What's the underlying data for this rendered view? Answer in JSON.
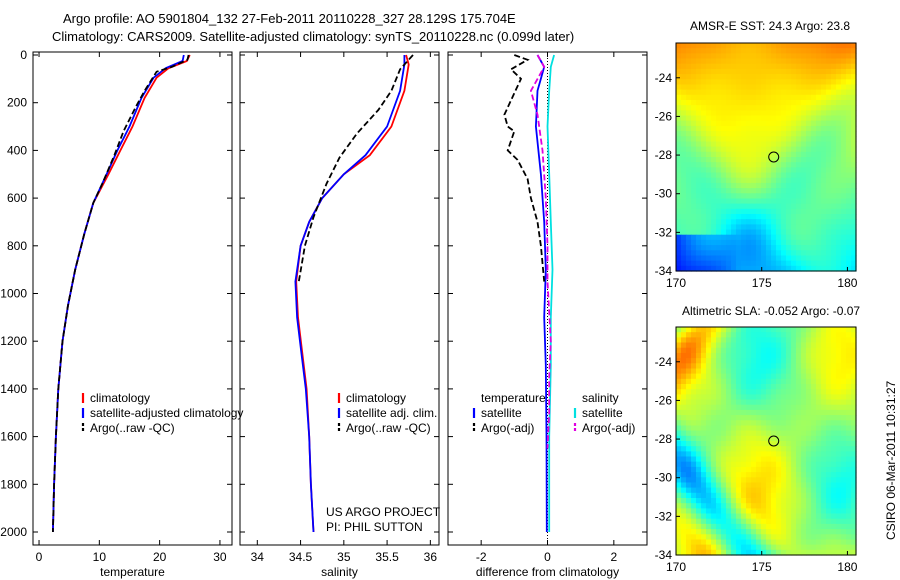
{
  "header": {
    "line1": "Argo profile: AO 5901804_132 27-Feb-2011 20110228_327 28.129S 175.704E",
    "line2": "Climatology: CARS2009. Satellite-adjusted climatology: synTS_20110228.nc (0.099d later)"
  },
  "colors": {
    "climatology": "#ff0000",
    "satellite": "#0000ff",
    "argo": "#000000",
    "sat_salinity": "#00e0e0",
    "argo_salinity": "#e000e0"
  },
  "chart_data": [
    {
      "type": "line",
      "panel": "temperature",
      "xlabel": "temperature",
      "ylabel": "",
      "xlim": [
        -1,
        32
      ],
      "ylim": [
        2050,
        0
      ],
      "xticks": [
        0,
        10,
        20,
        30
      ],
      "yticks": [
        0,
        200,
        400,
        600,
        800,
        1000,
        1200,
        1400,
        1600,
        1800,
        2000
      ],
      "legend": [
        "climatology",
        "satellite-adjusted climatology",
        "Argo(..raw -QC)"
      ],
      "series": [
        {
          "name": "climatology",
          "color": "climatology",
          "points": [
            [
              25,
              0
            ],
            [
              24.5,
              25
            ],
            [
              21.5,
              55
            ],
            [
              19.5,
              95
            ],
            [
              17.5,
              180
            ],
            [
              15.5,
              300
            ],
            [
              13.5,
              400
            ],
            [
              11.5,
              500
            ],
            [
              9,
              620
            ],
            [
              7.5,
              750
            ],
            [
              6,
              900
            ],
            [
              4.8,
              1050
            ],
            [
              3.9,
              1200
            ],
            [
              3.2,
              1400
            ],
            [
              2.8,
              1600
            ],
            [
              2.5,
              1800
            ],
            [
              2.3,
              2000
            ]
          ]
        },
        {
          "name": "satellite-adjusted climatology",
          "color": "satellite",
          "points": [
            [
              24,
              0
            ],
            [
              23.8,
              25
            ],
            [
              21,
              55
            ],
            [
              19,
              95
            ],
            [
              17,
              180
            ],
            [
              15,
              300
            ],
            [
              13,
              400
            ],
            [
              11.2,
              500
            ],
            [
              9,
              620
            ],
            [
              7.5,
              750
            ],
            [
              6,
              900
            ],
            [
              4.8,
              1050
            ],
            [
              3.9,
              1200
            ],
            [
              3.2,
              1400
            ],
            [
              2.8,
              1600
            ],
            [
              2.5,
              1800
            ],
            [
              2.3,
              2000
            ]
          ]
        },
        {
          "name": "Argo(..raw -QC)",
          "color": "argo",
          "points": [
            [
              24.8,
              0
            ],
            [
              24.6,
              20
            ],
            [
              22,
              50
            ],
            [
              19.5,
              70
            ],
            [
              17.5,
              150
            ],
            [
              16,
              220
            ],
            [
              14,
              320
            ],
            [
              12.5,
              420
            ],
            [
              10.5,
              540
            ],
            [
              9,
              620
            ],
            [
              7.5,
              750
            ],
            [
              6,
              900
            ],
            [
              4.8,
              1050
            ],
            [
              3.9,
              1200
            ],
            [
              3.2,
              1400
            ],
            [
              2.8,
              1600
            ],
            [
              2.5,
              1800
            ],
            [
              2.3,
              2000
            ]
          ]
        }
      ]
    },
    {
      "type": "line",
      "panel": "salinity",
      "xlabel": "salinity",
      "ylabel": "",
      "xlim": [
        33.8,
        36.1
      ],
      "ylim": [
        2050,
        0
      ],
      "xticks": [
        34,
        34.5,
        35,
        35.5,
        36
      ],
      "legend": [
        "climatology",
        "satellite adj. clim.",
        "Argo(..raw -QC)"
      ],
      "annotation": [
        "US ARGO PROJECT",
        "PI: PHIL SUTTON"
      ],
      "series": [
        {
          "name": "climatology",
          "color": "climatology",
          "points": [
            [
              35.72,
              0
            ],
            [
              35.75,
              40
            ],
            [
              35.7,
              150
            ],
            [
              35.55,
              300
            ],
            [
              35.3,
              420
            ],
            [
              35.0,
              500
            ],
            [
              34.75,
              600
            ],
            [
              34.6,
              700
            ],
            [
              34.5,
              800
            ],
            [
              34.45,
              950
            ],
            [
              34.47,
              1100
            ],
            [
              34.52,
              1250
            ],
            [
              34.57,
              1400
            ],
            [
              34.6,
              1600
            ],
            [
              34.62,
              1800
            ],
            [
              34.65,
              2000
            ]
          ]
        },
        {
          "name": "satellite adj. clim.",
          "color": "satellite",
          "points": [
            [
              35.7,
              0
            ],
            [
              35.7,
              40
            ],
            [
              35.65,
              150
            ],
            [
              35.5,
              300
            ],
            [
              35.25,
              420
            ],
            [
              35.0,
              500
            ],
            [
              34.75,
              600
            ],
            [
              34.6,
              700
            ],
            [
              34.5,
              800
            ],
            [
              34.44,
              950
            ],
            [
              34.46,
              1100
            ],
            [
              34.51,
              1250
            ],
            [
              34.56,
              1400
            ],
            [
              34.6,
              1600
            ],
            [
              34.62,
              1800
            ],
            [
              34.65,
              2000
            ]
          ]
        },
        {
          "name": "Argo(..raw -QC)",
          "color": "argo",
          "points": [
            [
              35.8,
              0
            ],
            [
              35.65,
              60
            ],
            [
              35.55,
              150
            ],
            [
              35.4,
              230
            ],
            [
              35.15,
              330
            ],
            [
              34.95,
              430
            ],
            [
              34.8,
              540
            ],
            [
              34.65,
              680
            ],
            [
              34.55,
              800
            ],
            [
              34.48,
              950
            ]
          ]
        }
      ]
    },
    {
      "type": "line",
      "panel": "difference",
      "xlabel": "difference from climatology",
      "xlim": [
        -3,
        3
      ],
      "ylim": [
        2050,
        0
      ],
      "xticks": [
        -2,
        0,
        2
      ],
      "legend_left_title": "temperature",
      "legend_right_title": "salinity",
      "legend": [
        "satellite",
        "Argo(-adj)",
        "satellite",
        "Argo(-adj)"
      ],
      "series": [
        {
          "name": "temperature satellite",
          "color": "satellite",
          "points": [
            [
              -0.3,
              0
            ],
            [
              -0.1,
              50
            ],
            [
              -0.3,
              150
            ],
            [
              -0.35,
              300
            ],
            [
              -0.2,
              500
            ],
            [
              -0.1,
              700
            ],
            [
              -0.05,
              900
            ],
            [
              -0.1,
              1100
            ],
            [
              -0.05,
              1300
            ],
            [
              -0.03,
              1600
            ],
            [
              -0.02,
              2000
            ]
          ]
        },
        {
          "name": "temperature Argo(-adj)",
          "color": "argo",
          "points": [
            [
              -1.0,
              0
            ],
            [
              -0.6,
              20
            ],
            [
              -1.1,
              60
            ],
            [
              -0.8,
              100
            ],
            [
              -1.0,
              160
            ],
            [
              -1.3,
              250
            ],
            [
              -1.2,
              300
            ],
            [
              -1.0,
              320
            ],
            [
              -1.2,
              400
            ],
            [
              -0.9,
              440
            ],
            [
              -0.6,
              520
            ],
            [
              -0.5,
              600
            ],
            [
              -0.3,
              700
            ],
            [
              -0.2,
              800
            ],
            [
              -0.1,
              950
            ]
          ]
        },
        {
          "name": "salinity satellite",
          "color": "sat_salinity",
          "points": [
            [
              0.2,
              0
            ],
            [
              0.1,
              50
            ],
            [
              0.05,
              150
            ],
            [
              0.0,
              300
            ],
            [
              0.05,
              500
            ],
            [
              0.1,
              700
            ],
            [
              0.15,
              900
            ],
            [
              0.1,
              1100
            ],
            [
              0.1,
              1300
            ],
            [
              0.05,
              1600
            ],
            [
              0.05,
              2000
            ]
          ]
        },
        {
          "name": "salinity Argo(-adj)",
          "color": "argo_salinity",
          "points": [
            [
              -0.3,
              0
            ],
            [
              -0.1,
              50
            ],
            [
              -0.5,
              150
            ],
            [
              -0.3,
              250
            ],
            [
              -0.15,
              400
            ],
            [
              -0.05,
              600
            ],
            [
              0.0,
              800
            ],
            [
              0.0,
              950
            ],
            [
              0.1,
              1200
            ],
            [
              0.05,
              1350
            ],
            [
              0.05,
              1500
            ],
            [
              0.0,
              1650
            ]
          ]
        }
      ]
    },
    {
      "type": "heatmap",
      "panel": "sst",
      "title": "AMSR-E SST: 24.3 Argo: 23.8",
      "xlim": [
        170,
        180.5
      ],
      "ylim": [
        -34,
        -22.2
      ],
      "xticks": [
        170,
        175,
        180
      ],
      "yticks": [
        -24,
        -26,
        -28,
        -30,
        -32,
        -34
      ],
      "marker": {
        "lon": 175.7,
        "lat": -28.1
      }
    },
    {
      "type": "heatmap",
      "panel": "sla",
      "title": "Altimetric SLA: -0.052 Argo: -0.07",
      "xlim": [
        170,
        180.5
      ],
      "ylim": [
        -34,
        -22.2
      ],
      "xticks": [
        170,
        175,
        180
      ],
      "yticks": [
        -24,
        -26,
        -28,
        -30,
        -32,
        -34
      ],
      "marker": {
        "lon": 175.7,
        "lat": -28.1
      }
    }
  ],
  "footer_stamp": "CSIRO 06-Mar-2011 10:31:27"
}
